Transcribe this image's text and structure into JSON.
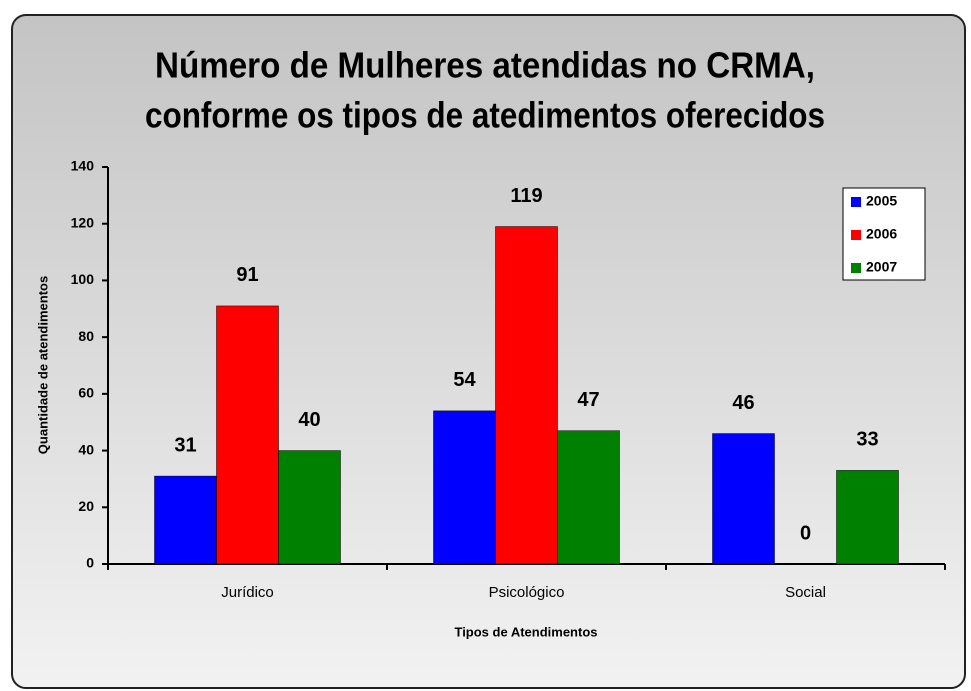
{
  "chart_data": {
    "type": "bar",
    "title": [
      "Número de Mulheres atendidas no CRMA,",
      "conforme os tipos de atedimentos oferecidos"
    ],
    "x_label": "Tipos de Atendimentos",
    "y_label": "Quantidade de atendimentos",
    "categories": [
      "Jurídico",
      "Psicológico",
      "Social"
    ],
    "series": [
      {
        "name": "2005",
        "color": "#0000ff",
        "values": [
          31,
          54,
          46
        ]
      },
      {
        "name": "2006",
        "color": "#ff0000",
        "values": [
          91,
          119,
          0
        ]
      },
      {
        "name": "2007",
        "color": "#008000",
        "values": [
          40,
          47,
          33
        ]
      }
    ],
    "ylim": [
      0,
      140
    ],
    "yticks": [
      0,
      20,
      40,
      60,
      80,
      100,
      120,
      140
    ],
    "legend": "upper right"
  }
}
